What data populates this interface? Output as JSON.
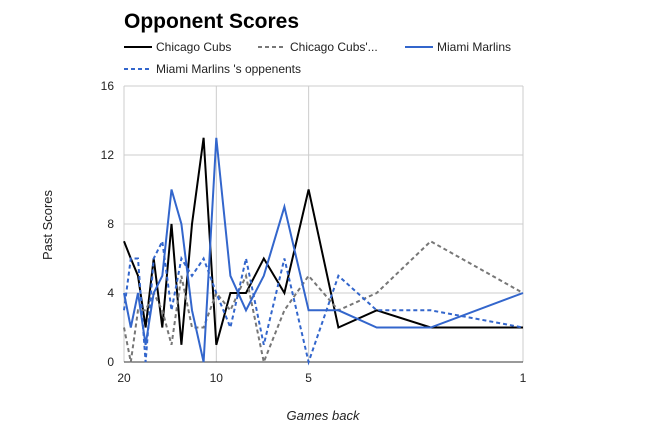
{
  "chart_data": {
    "type": "line",
    "title": "Opponent Scores",
    "xlabel": "Games back",
    "ylabel": "Past Scores",
    "x": [
      20,
      19,
      18,
      17,
      16,
      15,
      14,
      13,
      12,
      11,
      10,
      9,
      8,
      7,
      6,
      5,
      4,
      3,
      2,
      1
    ],
    "x_tick_labels": [
      "20",
      "10",
      "5",
      "1"
    ],
    "x_tick_values": [
      20,
      10,
      5,
      1
    ],
    "xlim": [
      20,
      1
    ],
    "ylim": [
      0,
      16
    ],
    "y_ticks": [
      0,
      4,
      8,
      12,
      16
    ],
    "grid": true,
    "legend": "top",
    "series": [
      {
        "name": "Chicago Cubs",
        "color": "#000000",
        "dashed": false,
        "values": [
          7,
          6,
          5,
          2,
          6,
          2,
          8,
          1,
          8,
          13,
          1,
          4,
          4,
          6,
          4,
          10,
          2,
          3,
          2,
          2
        ]
      },
      {
        "name": "Chicago Cubs'...",
        "color": "#777777",
        "dashed": true,
        "values": [
          2,
          0,
          3,
          3,
          4,
          3,
          1,
          5,
          2,
          2,
          4,
          3,
          5,
          0,
          3,
          5,
          3,
          4,
          7,
          4
        ]
      },
      {
        "name": "Miami Marlins",
        "color": "#3366cc",
        "dashed": false,
        "values": [
          4,
          2,
          4,
          1,
          4,
          5,
          10,
          8,
          3,
          0,
          13,
          5,
          3,
          5,
          9,
          3,
          3,
          2,
          2,
          4
        ]
      },
      {
        "name": "Miami Marlins 's oppenents",
        "color": "#3366cc",
        "dashed": true,
        "values": [
          3,
          6,
          6,
          0,
          6,
          7,
          3,
          6,
          5,
          6,
          4,
          2,
          6,
          1,
          6,
          0,
          5,
          3,
          3,
          2
        ]
      }
    ]
  }
}
